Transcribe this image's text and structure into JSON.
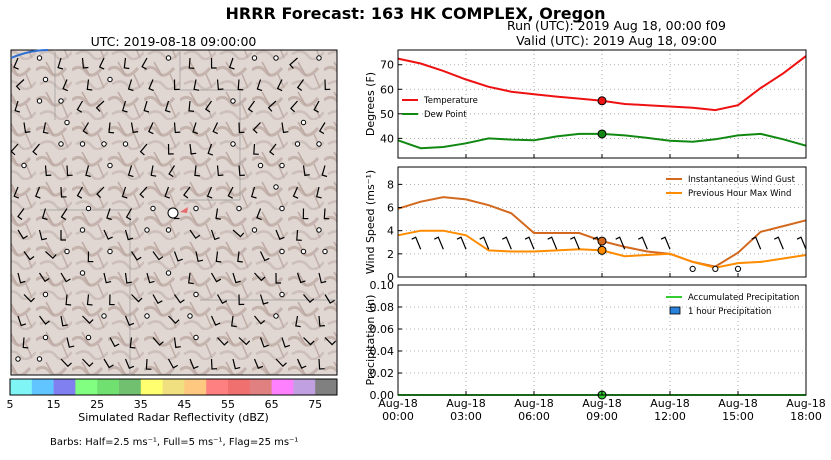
{
  "suptitle": "HRRR Forecast: 163 HK COMPLEX, Oregon",
  "map": {
    "title": "UTC: 2019-08-18 09:00:00",
    "colorbar": {
      "ticks": [
        "5",
        "15",
        "25",
        "35",
        "45",
        "55",
        "65",
        "75"
      ],
      "label": "Simulated Radar Reflectivity (dBZ)",
      "colors": [
        "#7ff5f5",
        "#61c6ff",
        "#8080f0",
        "#80ff80",
        "#70e070",
        "#70c070",
        "#ffff70",
        "#f0e080",
        "#ffc880",
        "#ff8080",
        "#f07070",
        "#e08080",
        "#ff80ff",
        "#c0a0e0",
        "#808080"
      ]
    },
    "barb_note": "Barbs: Half=2.5 ms⁻¹, Full=5 ms⁻¹, Flag=25 ms⁻¹"
  },
  "run": {
    "line1": "Run (UTC): 2019 Aug 18, 00:00 f09",
    "line2": "Valid (UTC): 2019 Aug 18, 09:00"
  },
  "x_tick_labels": [
    [
      "Aug-18",
      "00:00"
    ],
    [
      "Aug-18",
      "03:00"
    ],
    [
      "Aug-18",
      "06:00"
    ],
    [
      "Aug-18",
      "09:00"
    ],
    [
      "Aug-18",
      "12:00"
    ],
    [
      "Aug-18",
      "15:00"
    ],
    [
      "Aug-18",
      "18:00"
    ]
  ],
  "chart_data": [
    {
      "type": "line",
      "ylabel": "Degrees (F)",
      "ylim": [
        32,
        76
      ],
      "yticks": [
        "40",
        "50",
        "60",
        "70"
      ],
      "grid": true,
      "legend": "left",
      "x": [
        0,
        1,
        2,
        3,
        4,
        5,
        6,
        7,
        8,
        9,
        10,
        11,
        12,
        13,
        14,
        15,
        16,
        17,
        18
      ],
      "series": [
        {
          "name": "Temperature",
          "color": "#ee1111",
          "values": [
            72.5,
            70.5,
            67.5,
            64,
            61,
            59,
            58,
            57,
            56.2,
            55.3,
            54,
            53.5,
            53,
            52.5,
            51.5,
            53.5,
            60.5,
            66.5,
            73.5
          ]
        },
        {
          "name": "Dew Point",
          "color": "#118811",
          "values": [
            39.2,
            36,
            36.5,
            38,
            40,
            39.5,
            39.2,
            40.8,
            41.8,
            41.8,
            41.2,
            40.2,
            39,
            38.6,
            39.6,
            41.2,
            41.8,
            39.6,
            37
          ]
        }
      ],
      "marker_x": 9,
      "markers": [
        55.3,
        41.8
      ]
    },
    {
      "type": "line",
      "ylabel": "Wind Speed (ms⁻¹)",
      "ylim": [
        0,
        9.5
      ],
      "yticks": [
        "0",
        "2",
        "4",
        "6",
        "8"
      ],
      "grid": true,
      "legend": "top-right",
      "x": [
        0,
        1,
        2,
        3,
        4,
        5,
        6,
        7,
        8,
        9,
        10,
        11,
        12,
        13,
        14,
        15,
        16,
        17,
        18
      ],
      "series": [
        {
          "name": "Instantaneous Wind Gust",
          "color": "#d2691e",
          "values": [
            5.9,
            6.5,
            6.9,
            6.7,
            6.2,
            5.5,
            3.8,
            3.8,
            3.8,
            3.1,
            2.6,
            2.2,
            2.0,
            1.3,
            0.9,
            2.1,
            3.9,
            4.4,
            4.9
          ]
        },
        {
          "name": "Previous Hour Max Wind",
          "color": "#ff8c00",
          "values": [
            3.6,
            4.0,
            4.0,
            3.6,
            2.3,
            2.2,
            2.2,
            2.3,
            2.4,
            2.3,
            1.8,
            1.9,
            2.0,
            1.3,
            0.8,
            1.2,
            1.3,
            1.6,
            1.9
          ]
        }
      ],
      "marker_x": 9,
      "markers": [
        3.1,
        2.3
      ],
      "barbs": [
        {
          "x": 1,
          "calm": false
        },
        {
          "x": 2,
          "calm": false
        },
        {
          "x": 3,
          "calm": false
        },
        {
          "x": 4,
          "calm": false
        },
        {
          "x": 5,
          "calm": false
        },
        {
          "x": 6,
          "calm": false
        },
        {
          "x": 7,
          "calm": false
        },
        {
          "x": 8,
          "calm": false
        },
        {
          "x": 9,
          "calm": false
        },
        {
          "x": 10,
          "calm": false
        },
        {
          "x": 11,
          "calm": false
        },
        {
          "x": 12,
          "calm": false
        },
        {
          "x": 13,
          "calm": true
        },
        {
          "x": 14,
          "calm": true
        },
        {
          "x": 15,
          "calm": true
        },
        {
          "x": 16,
          "calm": false
        },
        {
          "x": 17,
          "calm": false
        },
        {
          "x": 18,
          "calm": false
        }
      ]
    },
    {
      "type": "line",
      "ylabel": "Precipitation (in)",
      "ylim": [
        0,
        0.1
      ],
      "yticks": [
        "0.00",
        "0.02",
        "0.04",
        "0.06",
        "0.08",
        "0.10"
      ],
      "grid": true,
      "legend": "top-right",
      "x": [
        0,
        1,
        2,
        3,
        4,
        5,
        6,
        7,
        8,
        9,
        10,
        11,
        12,
        13,
        14,
        15,
        16,
        17,
        18
      ],
      "series": [
        {
          "name": "Accumulated Precipitation",
          "color": "#33cc33",
          "values": [
            0,
            0,
            0,
            0,
            0,
            0,
            0,
            0,
            0,
            0,
            0,
            0,
            0,
            0,
            0,
            0,
            0,
            0,
            0
          ]
        }
      ],
      "bars": {
        "name": "1 hour Precipitation",
        "color": "#2a82da",
        "values": [
          0,
          0,
          0,
          0,
          0,
          0,
          0,
          0,
          0,
          0,
          0,
          0,
          0,
          0,
          0,
          0,
          0,
          0,
          0
        ]
      },
      "marker_x": 9,
      "markers": [
        0
      ]
    }
  ]
}
